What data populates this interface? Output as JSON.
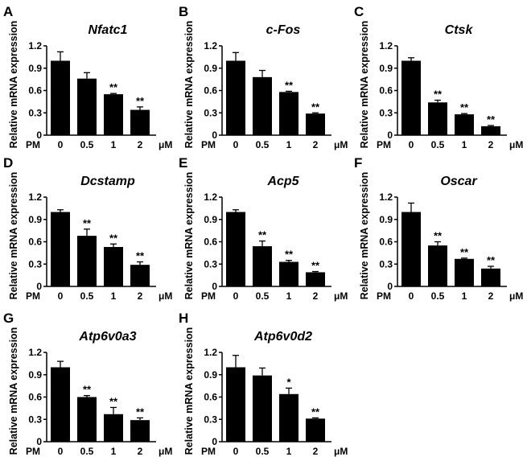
{
  "chart_data": [
    {
      "type": "bar",
      "panel": "A",
      "title": "Nfatc1",
      "ylabel": "Relative mRNA expression",
      "x_prefix": "PM",
      "x_unit": "μM",
      "categories": [
        "0",
        "0.5",
        "1",
        "2"
      ],
      "values": [
        1.0,
        0.76,
        0.55,
        0.34
      ],
      "errors": [
        0.12,
        0.08,
        0.01,
        0.04
      ],
      "significance": [
        "",
        "",
        "**",
        "**"
      ],
      "ylim": [
        0,
        1.2
      ],
      "yticks": [
        "0",
        "0.3",
        "0.6",
        "0.9",
        "1.2"
      ]
    },
    {
      "type": "bar",
      "panel": "B",
      "title": "c-Fos",
      "ylabel": "Relative mRNA expression",
      "x_prefix": "PM",
      "x_unit": "μM",
      "categories": [
        "0",
        "0.5",
        "1",
        "2"
      ],
      "values": [
        1.0,
        0.78,
        0.58,
        0.29
      ],
      "errors": [
        0.11,
        0.09,
        0.01,
        0.01
      ],
      "significance": [
        "",
        "",
        "**",
        "**"
      ],
      "ylim": [
        0,
        1.2
      ],
      "yticks": [
        "0",
        "0.3",
        "0.6",
        "0.9",
        "1.2"
      ]
    },
    {
      "type": "bar",
      "panel": "C",
      "title": "Ctsk",
      "ylabel": "Relative mRNA expression",
      "x_prefix": "PM",
      "x_unit": "μM",
      "categories": [
        "0",
        "0.5",
        "1",
        "2"
      ],
      "values": [
        1.0,
        0.44,
        0.28,
        0.12
      ],
      "errors": [
        0.04,
        0.03,
        0.01,
        0.01
      ],
      "significance": [
        "",
        "**",
        "**",
        "**"
      ],
      "ylim": [
        0,
        1.2
      ],
      "yticks": [
        "0",
        "0.3",
        "0.6",
        "0.9",
        "1.2"
      ]
    },
    {
      "type": "bar",
      "panel": "D",
      "title": "Dcstamp",
      "ylabel": "Relative mRNA expression",
      "x_prefix": "PM",
      "x_unit": "μM",
      "categories": [
        "0",
        "0.5",
        "1",
        "2"
      ],
      "values": [
        1.0,
        0.68,
        0.53,
        0.29
      ],
      "errors": [
        0.03,
        0.09,
        0.04,
        0.04
      ],
      "significance": [
        "",
        "**",
        "**",
        "**"
      ],
      "ylim": [
        0,
        1.2
      ],
      "yticks": [
        "0",
        "0.3",
        "0.6",
        "0.9",
        "1.2"
      ]
    },
    {
      "type": "bar",
      "panel": "E",
      "title": "Acp5",
      "ylabel": "Relative mRNA expression",
      "x_prefix": "PM",
      "x_unit": "μM",
      "categories": [
        "0",
        "0.5",
        "1",
        "2"
      ],
      "values": [
        1.0,
        0.54,
        0.33,
        0.19
      ],
      "errors": [
        0.03,
        0.07,
        0.02,
        0.01
      ],
      "significance": [
        "",
        "**",
        "**",
        "**"
      ],
      "ylim": [
        0,
        1.2
      ],
      "yticks": [
        "0",
        "0.3",
        "0.6",
        "0.9",
        "1.2"
      ]
    },
    {
      "type": "bar",
      "panel": "F",
      "title": "Oscar",
      "ylabel": "Relative mRNA expression",
      "x_prefix": "PM",
      "x_unit": "μM",
      "categories": [
        "0",
        "0.5",
        "1",
        "2"
      ],
      "values": [
        1.0,
        0.55,
        0.37,
        0.24
      ],
      "errors": [
        0.12,
        0.05,
        0.01,
        0.03
      ],
      "significance": [
        "",
        "**",
        "**",
        "**"
      ],
      "ylim": [
        0,
        1.2
      ],
      "yticks": [
        "0",
        "0.3",
        "0.6",
        "0.9",
        "1.2"
      ]
    },
    {
      "type": "bar",
      "panel": "G",
      "title": "Atp6v0a3",
      "ylabel": "Relative mRNA expression",
      "x_prefix": "PM",
      "x_unit": "μM",
      "categories": [
        "0",
        "0.5",
        "1",
        "2"
      ],
      "values": [
        1.0,
        0.6,
        0.37,
        0.29
      ],
      "errors": [
        0.08,
        0.02,
        0.09,
        0.03
      ],
      "significance": [
        "",
        "**",
        "**",
        "**"
      ],
      "ylim": [
        0,
        1.2
      ],
      "yticks": [
        "0",
        "0.3",
        "0.6",
        "0.9",
        "1.2"
      ]
    },
    {
      "type": "bar",
      "panel": "H",
      "title": "Atp6v0d2",
      "ylabel": "Relative mRNA expression",
      "x_prefix": "PM",
      "x_unit": "μM",
      "categories": [
        "0",
        "0.5",
        "1",
        "2"
      ],
      "values": [
        1.0,
        0.89,
        0.64,
        0.31
      ],
      "errors": [
        0.16,
        0.1,
        0.08,
        0.01
      ],
      "significance": [
        "",
        "",
        "*",
        "**"
      ],
      "ylim": [
        0,
        1.2
      ],
      "yticks": [
        "0",
        "0.3",
        "0.6",
        "0.9",
        "1.2"
      ]
    }
  ],
  "colors": {
    "bar": "#000000",
    "axis": "#000000"
  }
}
